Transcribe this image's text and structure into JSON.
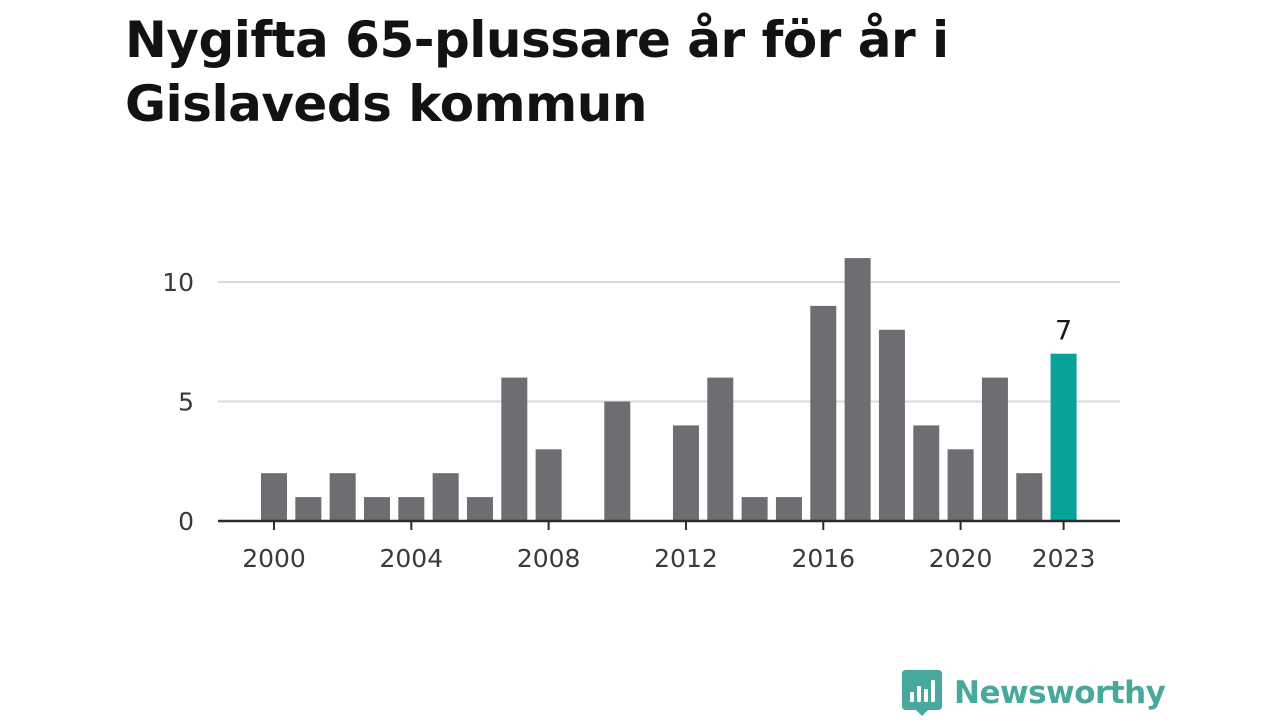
{
  "title": "Nygifta 65-plussare år för år i Gislaveds kommun",
  "brand": {
    "name": "Newsworthy",
    "color": "#49a89c"
  },
  "colors": {
    "bar": "#6e6d72",
    "highlight": "#07a399",
    "grid": "#d9d9d9",
    "axis": "#2b2b2b"
  },
  "chart_data": {
    "type": "bar",
    "categories": [
      "2000",
      "2001",
      "2002",
      "2003",
      "2004",
      "2005",
      "2006",
      "2007",
      "2008",
      "2009",
      "2010",
      "2011",
      "2012",
      "2013",
      "2014",
      "2015",
      "2016",
      "2017",
      "2018",
      "2019",
      "2020",
      "2021",
      "2022",
      "2023"
    ],
    "values": [
      2,
      1,
      2,
      1,
      1,
      2,
      1,
      6,
      3,
      0,
      5,
      0,
      4,
      6,
      1,
      1,
      9,
      11,
      8,
      4,
      3,
      6,
      2,
      7
    ],
    "x_tick_labels": [
      "2000",
      "2004",
      "2008",
      "2012",
      "2016",
      "2020",
      "2023"
    ],
    "y_ticks": [
      0,
      5,
      10
    ],
    "ylim": [
      0,
      11
    ],
    "highlight": {
      "category": "2023",
      "label": "7"
    },
    "grid": true
  }
}
